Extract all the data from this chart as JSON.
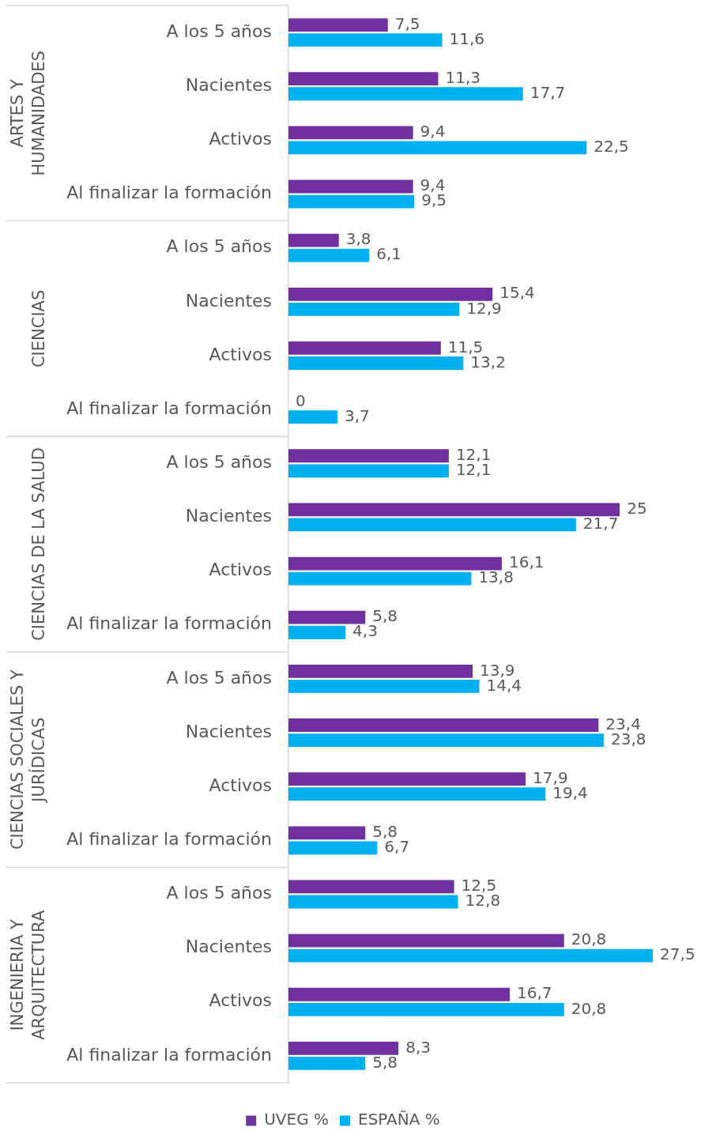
{
  "chart_data": {
    "type": "bar",
    "orientation": "horizontal",
    "tick_labels": "y",
    "legend": "bottom",
    "categories": [
      "A los 5 años",
      "Nacientes",
      "Activos",
      "Al finalizar la formación",
      "A los 5 años",
      "Nacientes",
      "Activos",
      "Al finalizar la formación",
      "A los 5 años",
      "Nacientes",
      "Activos",
      "Al finalizar la formación",
      "A los 5 años",
      "Nacientes",
      "Activos",
      "Al finalizar la formación",
      "A los 5 años",
      "Nacientes",
      "Activos",
      "Al finalizar la formación"
    ],
    "series": [
      {
        "name": "UVEG %",
        "color": "#7030a0",
        "values": [
          7.5,
          11.3,
          9.4,
          9.4,
          3.8,
          15.4,
          11.5,
          0,
          12.1,
          25,
          16.1,
          5.8,
          13.9,
          23.4,
          17.9,
          5.8,
          12.5,
          20.8,
          16.7,
          8.3
        ],
        "value_labels": [
          "7,5",
          "11,3",
          "9,4",
          "9,4",
          "3,8",
          "15,4",
          "11,5",
          "0",
          "12,1",
          "25",
          "16,1",
          "5,8",
          "13,9",
          "23,4",
          "17,9",
          "5,8",
          "12,5",
          "20,8",
          "16,7",
          "8,3"
        ]
      },
      {
        "name": "ESPAÑA %",
        "color": "#00b0f0",
        "values": [
          11.6,
          17.7,
          22.5,
          9.5,
          6.1,
          12.9,
          13.2,
          3.7,
          12.1,
          21.7,
          13.8,
          4.3,
          14.4,
          23.8,
          19.4,
          6.7,
          12.8,
          27.5,
          20.8,
          5.8
        ],
        "value_labels": [
          "11,6",
          "17,7",
          "22,5",
          "9,5",
          "6,1",
          "12,9",
          "13,2",
          "3,7",
          "12,1",
          "21,7",
          "13,8",
          "4,3",
          "14,4",
          "23,8",
          "19,4",
          "6,7",
          "12,8",
          "27,5",
          "20,8",
          "5,8"
        ]
      }
    ],
    "annotations": [
      "ARTES Y HUMANIDADES",
      "CIENCIAS",
      "CIENCIAS DE LA SALUD",
      "CIENCIAS SOCIALES Y JURÍDICAS",
      "INGENIERIA Y ARQUITECTURA"
    ]
  }
}
